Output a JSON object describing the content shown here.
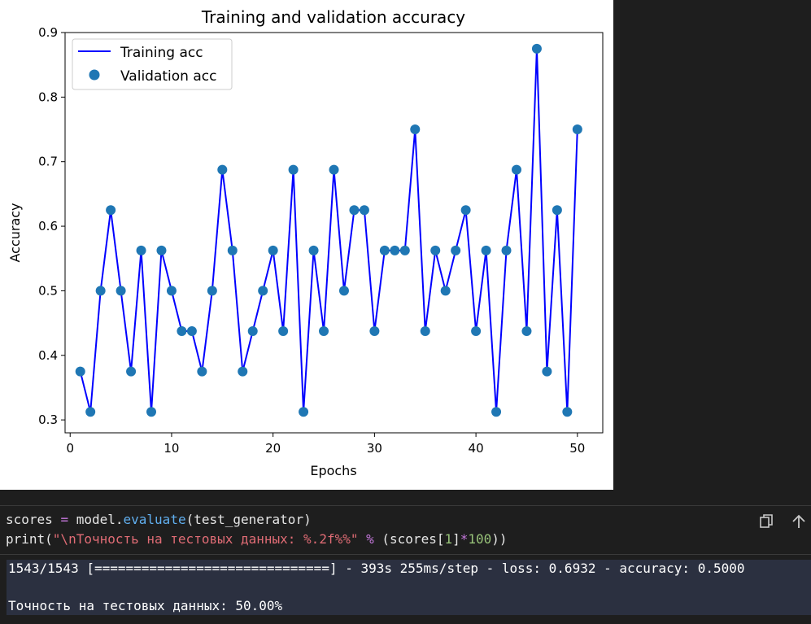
{
  "chart_data": {
    "type": "line",
    "title": "Training and validation accuracy",
    "xlabel": "Epochs",
    "ylabel": "Accuracy",
    "xlim": [
      -0.5,
      52.5
    ],
    "ylim": [
      0.28,
      0.9
    ],
    "xticks": [
      0,
      10,
      20,
      30,
      40,
      50
    ],
    "yticks": [
      0.3,
      0.4,
      0.5,
      0.6,
      0.7,
      0.8,
      0.9
    ],
    "grid": false,
    "legend_position": "top-left",
    "x": [
      1,
      2,
      3,
      4,
      5,
      6,
      7,
      8,
      9,
      10,
      11,
      12,
      13,
      14,
      15,
      16,
      17,
      18,
      19,
      20,
      21,
      22,
      23,
      24,
      25,
      26,
      27,
      28,
      29,
      30,
      31,
      32,
      33,
      34,
      35,
      36,
      37,
      38,
      39,
      40,
      41,
      42,
      43,
      44,
      45,
      46,
      47,
      48,
      49,
      50
    ],
    "series": [
      {
        "name": "Training acc",
        "style": "line",
        "color": "#0000ff",
        "values": [
          0.375,
          0.3125,
          0.5,
          0.625,
          0.5,
          0.375,
          0.5625,
          0.3125,
          0.5625,
          0.5,
          0.4375,
          0.4375,
          0.375,
          0.5,
          0.6875,
          0.5625,
          0.375,
          0.4375,
          0.5,
          0.5625,
          0.4375,
          0.6875,
          0.3125,
          0.5625,
          0.4375,
          0.6875,
          0.5,
          0.625,
          0.625,
          0.4375,
          0.5625,
          0.5625,
          0.5625,
          0.75,
          0.4375,
          0.5625,
          0.5,
          0.5625,
          0.625,
          0.4375,
          0.5625,
          0.3125,
          0.5625,
          0.6875,
          0.4375,
          0.875,
          0.375,
          0.625,
          0.3125,
          0.75
        ]
      },
      {
        "name": "Validation acc",
        "style": "scatter",
        "color": "#1f77b4",
        "values": [
          0.375,
          0.3125,
          0.5,
          0.625,
          0.5,
          0.375,
          0.5625,
          0.3125,
          0.5625,
          0.5,
          0.4375,
          0.4375,
          0.375,
          0.5,
          0.6875,
          0.5625,
          0.375,
          0.4375,
          0.5,
          0.5625,
          0.4375,
          0.6875,
          0.3125,
          0.5625,
          0.4375,
          0.6875,
          0.5,
          0.625,
          0.625,
          0.4375,
          0.5625,
          0.5625,
          0.5625,
          0.75,
          0.4375,
          0.5625,
          0.5,
          0.5625,
          0.625,
          0.4375,
          0.5625,
          0.3125,
          0.5625,
          0.6875,
          0.4375,
          0.875,
          0.375,
          0.625,
          0.3125,
          0.75
        ]
      }
    ]
  },
  "code_cell": {
    "line1": {
      "var": "scores ",
      "assign": "=",
      "obj": " model.",
      "method": "evaluate",
      "args": "(test_generator)"
    },
    "line2": {
      "fn": "print(",
      "str": "\"\\nТочность на тестовых данных: %.2f%%\"",
      "space1": " ",
      "mod": "%",
      "open": " (scores[",
      "idx": "1",
      "close1": "]",
      "mul": "*",
      "num": "100",
      "close2": "))"
    }
  },
  "output": {
    "progress_line": "1543/1543 [==============================] - 393s 255ms/step - loss: 0.6932 - accuracy: 0.5000",
    "result_line": "Точность на тестовых данных: 50.00%"
  },
  "icons": {
    "copy": "copy-icon",
    "scroll_up": "arrow-up-icon"
  }
}
